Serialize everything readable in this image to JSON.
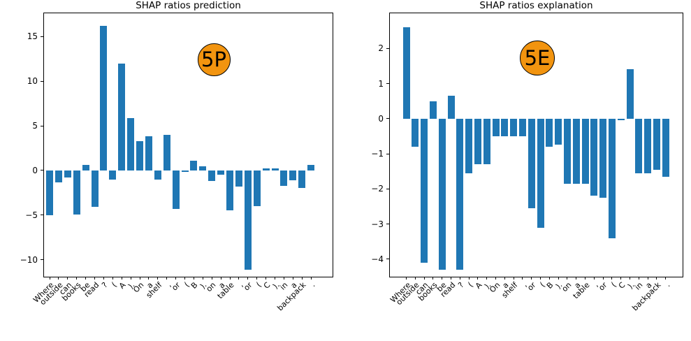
{
  "figure": {
    "background": "#ffffff"
  },
  "colors": {
    "bar": "#1f77b4",
    "badge_fill": "#f2940f",
    "badge_border": "#000000",
    "axis": "#000000"
  },
  "chart_data": [
    {
      "type": "bar",
      "title": "SHAP ratios prediction",
      "badge": "5P",
      "xlabel": "",
      "ylabel": "",
      "grid": false,
      "legend": null,
      "categories": [
        "Where",
        "outside",
        "can",
        "books",
        "be",
        "read",
        "?",
        "(",
        "A",
        ").",
        "On",
        "a",
        "shelf",
        ",",
        "or",
        "(",
        "B",
        ").",
        "on",
        "a",
        "table",
        ",",
        "or",
        "(",
        "C",
        ").",
        "in",
        "a",
        "backpack",
        "."
      ],
      "values": [
        -5.0,
        -1.35,
        -0.75,
        -4.9,
        0.65,
        -4.1,
        16.2,
        -1.0,
        12.0,
        5.9,
        3.3,
        3.8,
        -1.0,
        4.0,
        -4.3,
        -0.15,
        1.1,
        0.5,
        -1.2,
        -0.5,
        -4.5,
        -1.8,
        -11.1,
        -4.0,
        0.25,
        0.25,
        -1.7,
        -1.1,
        -1.95,
        0.6
      ],
      "yticks": [
        15,
        10,
        5,
        0,
        -5,
        -10
      ],
      "ylim": [
        -11.9,
        17.6
      ]
    },
    {
      "type": "bar",
      "title": "SHAP ratios explanation",
      "badge": "5E",
      "xlabel": "",
      "ylabel": "",
      "grid": false,
      "legend": null,
      "categories": [
        "Where",
        "outside",
        "can",
        "books",
        "be",
        "read",
        "?",
        "(",
        "A",
        ").",
        "On",
        "a",
        "shelf",
        ",",
        "or",
        "(",
        "B",
        ").",
        "on",
        "a",
        "table",
        ",",
        "or",
        "(",
        "C",
        ").",
        "in",
        "a",
        "backpack",
        "."
      ],
      "values": [
        2.6,
        -0.8,
        -4.1,
        0.5,
        -4.3,
        0.65,
        -4.3,
        -1.55,
        -1.3,
        -1.3,
        -0.5,
        -0.5,
        -0.5,
        -0.5,
        -2.55,
        -3.1,
        -0.8,
        -0.75,
        -1.85,
        -1.85,
        -1.85,
        -2.2,
        -2.25,
        -3.4,
        -0.05,
        1.4,
        -1.55,
        -1.55,
        -1.45,
        -1.65
      ],
      "yticks": [
        2,
        1,
        0,
        -1,
        -2,
        -3,
        -4
      ],
      "ylim": [
        -4.5,
        3.0
      ]
    }
  ]
}
